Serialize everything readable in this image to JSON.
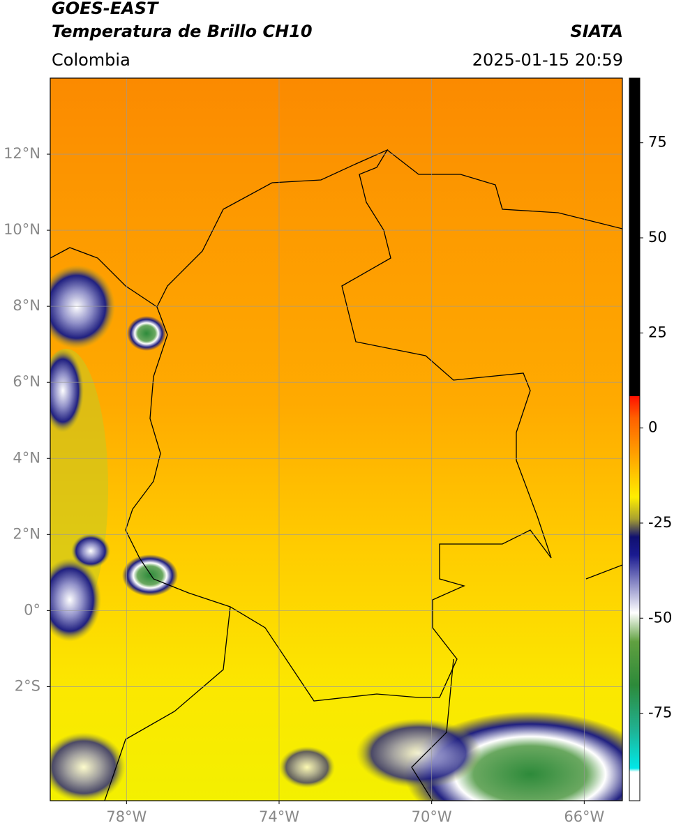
{
  "header": {
    "title": "GOES-EAST",
    "subtitle": "Temperatura de Brillo CH10",
    "region": "Colombia",
    "source": "SIATA",
    "datetime": "2025-01-15 20:59"
  },
  "map": {
    "xlim": [
      -80,
      -65
    ],
    "ylim": [
      -5,
      14
    ],
    "xticks": [
      {
        "value": -78,
        "label": "78°W"
      },
      {
        "value": -74,
        "label": "74°W"
      },
      {
        "value": -70,
        "label": "70°W"
      },
      {
        "value": -66,
        "label": "66°W"
      }
    ],
    "yticks": [
      {
        "value": 12,
        "label": "12°N"
      },
      {
        "value": 10,
        "label": "10°N"
      },
      {
        "value": 8,
        "label": "8°N"
      },
      {
        "value": 6,
        "label": "6°N"
      },
      {
        "value": 4,
        "label": "4°N"
      },
      {
        "value": 2,
        "label": "2°N"
      },
      {
        "value": 0,
        "label": "0°"
      },
      {
        "value": -2,
        "label": "2°S"
      }
    ],
    "grid": true
  },
  "colorbar": {
    "lim": [
      -98,
      92
    ],
    "ticks": [
      75,
      50,
      25,
      0,
      -25,
      -50,
      -75
    ]
  }
}
